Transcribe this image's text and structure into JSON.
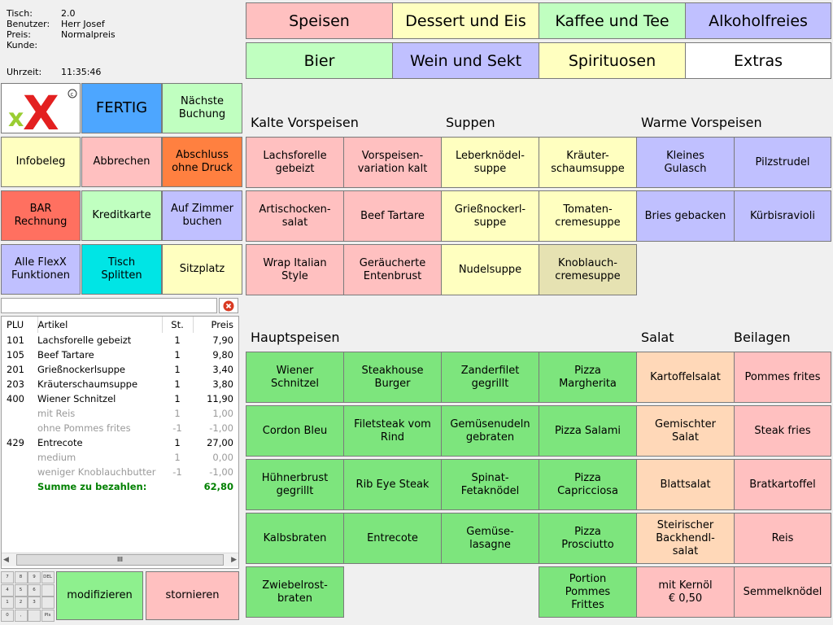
{
  "info": {
    "tisch_label": "Tisch:",
    "tisch": "2.0",
    "benutzer_label": "Benutzer:",
    "benutzer": "Herr Josef",
    "preis_label": "Preis:",
    "preis": "Normalpreis",
    "kunde_label": "Kunde:",
    "uhrzeit_label": "Uhrzeit:",
    "uhrzeit": "11:35:46"
  },
  "logo": {
    "text": "xX",
    "mark": "©"
  },
  "actions": {
    "fertig": "FERTIG",
    "naechste": "Nächste\nBuchung",
    "infobeleg": "Infobeleg",
    "abbrechen": "Abbrechen",
    "abschluss": "Abschluss\nohne Druck",
    "bar": "BAR\nRechnung",
    "kreditkarte": "Kreditkarte",
    "zimmer": "Auf Zimmer\nbuchen",
    "flexx": "Alle FlexX\nFunktionen",
    "splitten": "Tisch\nSplitten",
    "sitzplatz": "Sitzplatz",
    "modifizieren": "modifizieren",
    "stornieren": "stornieren"
  },
  "categories": [
    "Speisen",
    "Dessert und Eis",
    "Kaffee und Tee",
    "Alkoholfreies",
    "Bier",
    "Wein und Sekt",
    "Spirituosen",
    "Extras"
  ],
  "category_colors": [
    "#ffc0c0",
    "#ffffc0",
    "#c0ffc0",
    "#c0c0ff",
    "#c0ffc0",
    "#c0c0ff",
    "#ffffc0",
    "#ffffff"
  ],
  "sections": {
    "kalte": "Kalte Vorspeisen",
    "suppen": "Suppen",
    "warme": "Warme Vorspeisen",
    "haupt": "Hauptspeisen",
    "salat": "Salat",
    "beilagen": "Beilagen"
  },
  "items": {
    "lachsforelle": "Lachsforelle\ngebeizt",
    "vorspeisen": "Vorspeisen-\nvariation kalt",
    "leberknoedel": "Leberknödel-\nsuppe",
    "kraeuter": "Kräuter-\nschaumsuppe",
    "gulasch": "Kleines\nGulasch",
    "pilzstrudel": "Pilzstrudel",
    "artischocken": "Artischocken-\nsalat",
    "beef": "Beef Tartare",
    "griess": "Grießnockerl-\nsuppe",
    "tomaten": "Tomaten-\ncremesuppe",
    "bries": "Bries gebacken",
    "kuerbis": "Kürbisravioli",
    "wrap": "Wrap Italian\nStyle",
    "entenbrust": "Geräucherte\nEntenbrust",
    "nudelsuppe": "Nudelsuppe",
    "knoblauch": "Knoblauch-\ncremesuppe",
    "wiener": "Wiener\nSchnitzel",
    "steakhouse": "Steakhouse\nBurger",
    "zander": "Zanderfilet\ngegrillt",
    "margherita": "Pizza\nMargherita",
    "kartoffelsalat": "Kartoffelsalat",
    "pommes": "Pommes frites",
    "cordon": "Cordon Bleu",
    "filetsteak": "Filetsteak vom\nRind",
    "gemuesenudeln": "Gemüsenudeln\ngebraten",
    "salami": "Pizza Salami",
    "gemischter": "Gemischter\nSalat",
    "steakfries": "Steak fries",
    "huehnerbrust": "Hühnerbrust\ngegrillt",
    "ribeye": "Rib Eye Steak",
    "spinat": "Spinat-\nFetaknödel",
    "capricciosa": "Pizza\nCapricciosa",
    "blattsalat": "Blattsalat",
    "bratkartoffel": "Bratkartoffel",
    "kalbsbraten": "Kalbsbraten",
    "entrecote": "Entrecote",
    "lasagne": "Gemüse-\nlasagne",
    "prosciutto": "Pizza\nProsciutto",
    "backhendl": "Steirischer\nBackhendl-\nsalat",
    "reis": "Reis",
    "zwiebel": "Zwiebelrost-\nbraten",
    "portion": "Portion\nPommes\nFrittes",
    "kernoel": "mit Kernöl\n€ 0,50",
    "semmel": "Semmelknödel"
  },
  "order": {
    "headers": [
      "PLU",
      "Artikel",
      "St.",
      "Preis"
    ],
    "rows": [
      {
        "plu": "101",
        "artikel": "Lachsforelle gebeizt",
        "st": "1",
        "preis": "7,90"
      },
      {
        "plu": "105",
        "artikel": "Beef Tartare",
        "st": "1",
        "preis": "9,80"
      },
      {
        "plu": "201",
        "artikel": "Grießnockerlsuppe",
        "st": "1",
        "preis": "3,40"
      },
      {
        "plu": "203",
        "artikel": "Kräuterschaumsuppe",
        "st": "1",
        "preis": "3,80"
      },
      {
        "plu": "400",
        "artikel": "Wiener Schnitzel",
        "st": "1",
        "preis": "11,90"
      },
      {
        "plu": "",
        "artikel": "mit Reis",
        "st": "1",
        "preis": "1,00"
      },
      {
        "plu": "",
        "artikel": "ohne Pommes frites",
        "st": "-1",
        "preis": "-1,00"
      },
      {
        "plu": "429",
        "artikel": "Entrecote",
        "st": "1",
        "preis": "27,00"
      },
      {
        "plu": "",
        "artikel": "medium",
        "st": "1",
        "preis": "0,00"
      },
      {
        "plu": "",
        "artikel": "weniger Knoblauchbutter",
        "st": "-1",
        "preis": "-1,00"
      }
    ],
    "summe_label": "Summe zu bezahlen:",
    "summe": "62,80",
    "scroll_thumb": "III"
  },
  "numpad": [
    "7",
    "8",
    "9",
    "DEL",
    "4",
    "5",
    "6",
    "",
    "1",
    "2",
    "3",
    "",
    "0",
    ",",
    "",
    "Pls"
  ]
}
